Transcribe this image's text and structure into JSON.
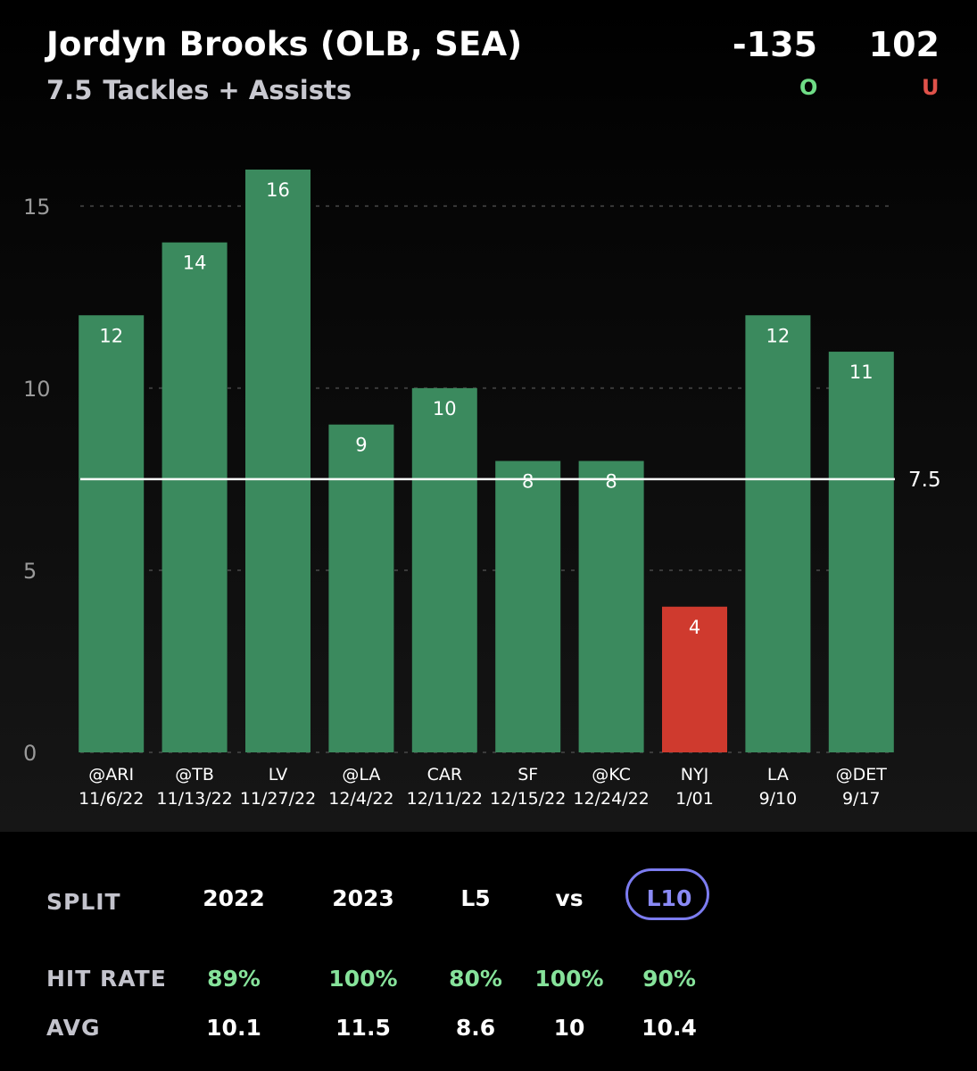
{
  "header": {
    "player": "Jordyn Brooks (OLB, SEA)",
    "line_value": "7.5",
    "stat_label": "Tackles + Assists",
    "over_odds": "-135",
    "under_odds": "102",
    "over_tag": "O",
    "under_tag": "U"
  },
  "colors": {
    "over_bar": "#3b8a5e",
    "under_bar": "#cf3a2e",
    "line": "#ffffff",
    "grid": "#3a3a3a",
    "accent_pill": "#7c7cf0",
    "hit_rate_text": "#86e29a"
  },
  "chart_data": {
    "type": "bar",
    "title": "",
    "xlabel": "",
    "ylabel": "",
    "ylim": [
      0,
      16
    ],
    "yticks": [
      0,
      5,
      10,
      15
    ],
    "grid": true,
    "categories": [
      [
        "@ARI",
        "11/6/22"
      ],
      [
        "@TB",
        "11/13/22"
      ],
      [
        "LV",
        "11/27/22"
      ],
      [
        "@LA",
        "12/4/22"
      ],
      [
        "CAR",
        "12/11/22"
      ],
      [
        "SF",
        "12/15/22"
      ],
      [
        "@KC",
        "12/24/22"
      ],
      [
        "NYJ",
        "1/01"
      ],
      [
        "LA",
        "9/10"
      ],
      [
        "@DET",
        "9/17"
      ]
    ],
    "values": [
      12,
      14,
      16,
      9,
      10,
      8,
      8,
      4,
      12,
      11
    ],
    "reference_line": {
      "value": 7.5,
      "label": "7.5"
    }
  },
  "stats": {
    "split_label": "SPLIT",
    "hit_rate_label": "HIT RATE",
    "avg_label": "AVG",
    "columns": [
      {
        "split": "2022",
        "hit_rate": "89%",
        "avg": "10.1"
      },
      {
        "split": "2023",
        "hit_rate": "100%",
        "avg": "11.5"
      },
      {
        "split": "L5",
        "hit_rate": "80%",
        "avg": "8.6"
      },
      {
        "split": "vs",
        "hit_rate": "100%",
        "avg": "10"
      },
      {
        "split": "L10",
        "hit_rate": "90%",
        "avg": "10.4"
      }
    ],
    "selected_split": "L10"
  }
}
